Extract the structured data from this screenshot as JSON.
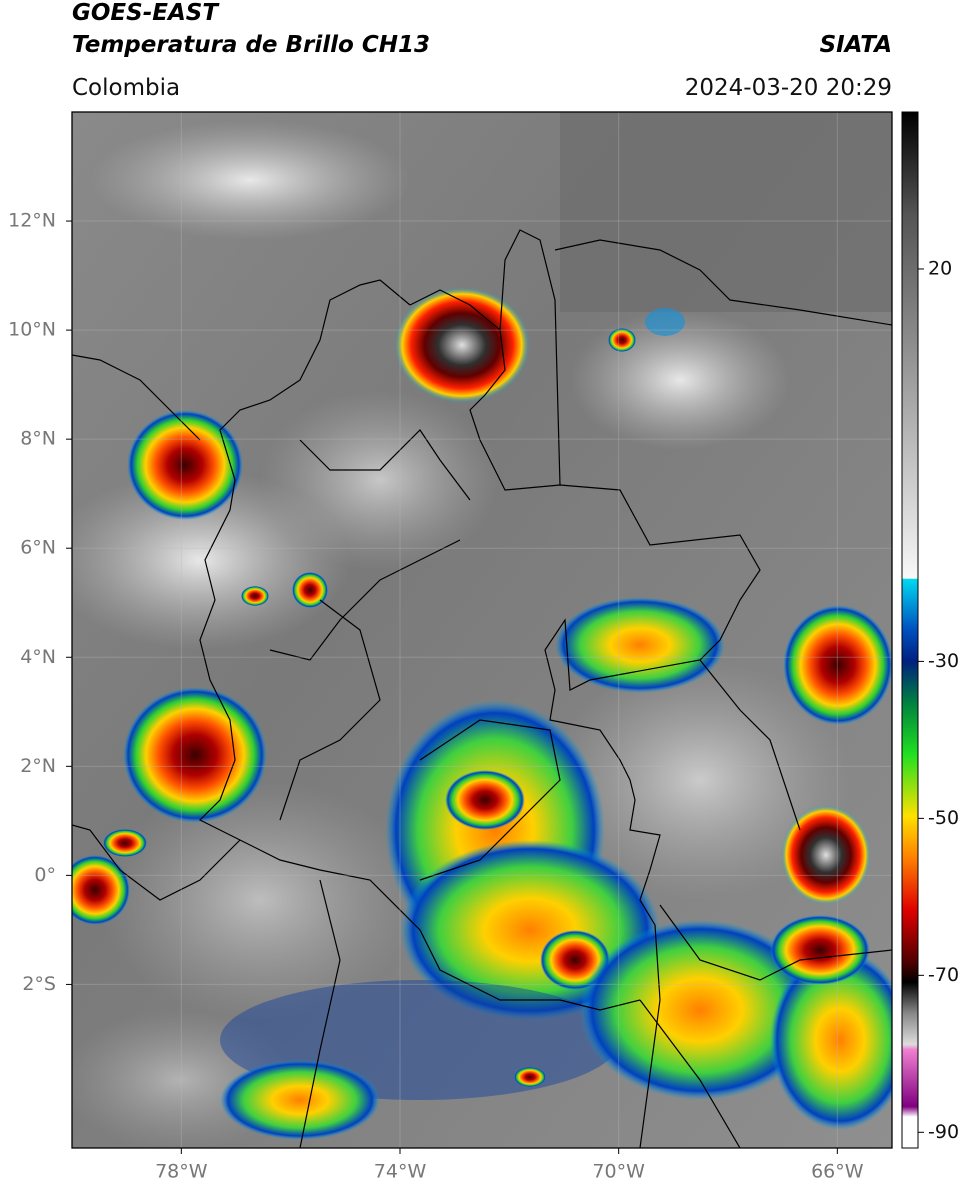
{
  "header": {
    "title": "GOES-EAST",
    "subtitle": "Temperatura de Brillo CH13",
    "source": "SIATA",
    "region": "Colombia",
    "datetime": "2024-03-20 20:29"
  },
  "map": {
    "xlim": [
      -80,
      -65
    ],
    "ylim": [
      -5,
      14
    ],
    "xticks": [
      {
        "value": -78,
        "label": "78°W"
      },
      {
        "value": -74,
        "label": "74°W"
      },
      {
        "value": -70,
        "label": "70°W"
      },
      {
        "value": -66,
        "label": "66°W"
      }
    ],
    "yticks": [
      {
        "value": 12,
        "label": "12°N"
      },
      {
        "value": 10,
        "label": "10°N"
      },
      {
        "value": 8,
        "label": "8°N"
      },
      {
        "value": 6,
        "label": "6°N"
      },
      {
        "value": 4,
        "label": "4°N"
      },
      {
        "value": 2,
        "label": "2°N"
      },
      {
        "value": 0,
        "label": "0°"
      },
      {
        "value": -2,
        "label": "2°S"
      }
    ]
  },
  "colorbar": {
    "lim": [
      -92,
      40
    ],
    "ticks": [
      20,
      -30,
      -50,
      -70,
      -90
    ]
  }
}
